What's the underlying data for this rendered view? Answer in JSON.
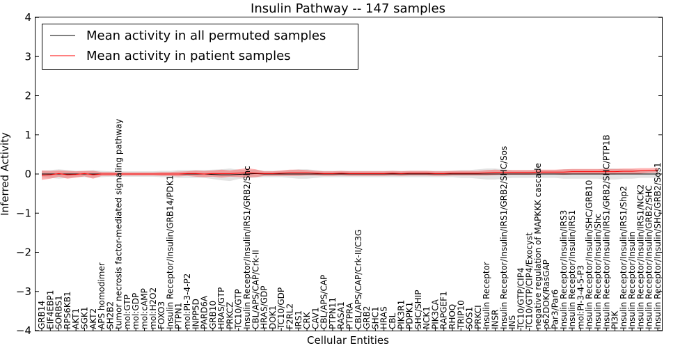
{
  "chart_data": {
    "type": "line",
    "title": "Insulin Pathway -- 147 samples",
    "xlabel": "Cellular Entities",
    "ylabel": "Inferred Activity",
    "ylim": [
      -4,
      4
    ],
    "yticks": [
      "4",
      "3",
      "2",
      "1",
      "0",
      "−1",
      "−2",
      "−3",
      "−4"
    ],
    "legend": {
      "placement": "top-left",
      "entries": [
        {
          "label": "Mean activity in all permuted samples",
          "color": "#000000"
        },
        {
          "label": "Mean activity in patient samples",
          "color": "#ff0000"
        }
      ]
    },
    "categories": [
      "GRB14",
      "EIF4EBP1",
      "SORBS1",
      "RPS6KB1",
      "AKT1",
      "SGK1",
      "AKT2",
      "APS homodimer",
      "SH2B2",
      "tumor necrosis factor-mediated signaling pathway",
      "mol:GTP",
      "mol:GDP",
      "mol:cAMP",
      "mol:H2O2",
      "FOXO3",
      "Insulin Receptor/Insulin/GRB14/PDK1",
      "PTPN1",
      "mol:PI-3-4-P2",
      "INPP5D",
      "PARD6A",
      "GRB10",
      "HRAS/GTP",
      "PRKCZ",
      "TC10/GTP",
      "Insulin Receptor/Insulin/IRS1/GRB2/Shc",
      "CBL/APS/CAP/Crk-II",
      "HRAS/GDP",
      "DOK1",
      "TC10/GDP",
      "F2RL2",
      "IRS1",
      "CRK",
      "CAV1",
      "CBL/APS/CAP",
      "PTPN11",
      "RASA1",
      "PTPRA",
      "CBL/APS/CAP/Crk-II/C3G",
      "GRB2",
      "SHC1",
      "HRAS",
      "CBL",
      "PIK3R1",
      "PDPK1",
      "SHC/SHIP",
      "NCK1",
      "PIK3CA",
      "RAPGEF1",
      "RHOQ",
      "TRIP10",
      "SOS1",
      "PRKCI",
      "Insulin Receptor",
      "INSR",
      "Insulin Receptor/Insulin/IRS1/GRB2/SHC/Sos",
      "INS",
      "TC10/GTP/CIP4",
      "TC10/GTP/CIP4/Exocyst",
      "negative regulation of MAPKKK cascade",
      "p62DOK/RasGAP",
      "Par3/Par6",
      "Insulin Receptor/Insulin/IRS3",
      "Insulin Receptor/Insulin/IRS1",
      "mol:PI-3-4-5-P3",
      "Insulin Receptor/Insulin/SHC/GRB10",
      "Insulin Receptor/Insulin/Shc",
      "Insulin Receptor/Insulin/IRS1/GRB2/SHC/PTP1B",
      "PI3K",
      "Insulin Receptor/Insulin/IRS1/Shp2",
      "Insulin Receptor/Insulin",
      "Insulin Receptor/Insulin/IRS1/NCK2",
      "Insulin Receptor/Insulin/GRB2/SHC",
      "Insulin Receptor/Insulin/SHC/GRB2/Sos1"
    ],
    "series": [
      {
        "name": "Mean activity in all permuted samples",
        "color": "#000000",
        "values": [
          0,
          0,
          0,
          0,
          0,
          0,
          0,
          0,
          0,
          0,
          0,
          0,
          0,
          0,
          0,
          0,
          0,
          0,
          0,
          0,
          -0.01,
          -0.02,
          -0.02,
          -0.01,
          0,
          0.01,
          0,
          0,
          0,
          0,
          0,
          0,
          0,
          0,
          0,
          0,
          0,
          0,
          0,
          0,
          0,
          0,
          0,
          0,
          0,
          0,
          0,
          0,
          0,
          0,
          0,
          0,
          0,
          0,
          0,
          0,
          0,
          0,
          0,
          0,
          0,
          0,
          0,
          0,
          0,
          0,
          0,
          0,
          0,
          0,
          0,
          0,
          0
        ],
        "band": [
          0.08,
          0.1,
          0.12,
          0.1,
          0.08,
          0.08,
          0.1,
          0.08,
          0.07,
          0.07,
          0.07,
          0.07,
          0.07,
          0.07,
          0.08,
          0.08,
          0.1,
          0.1,
          0.1,
          0.1,
          0.12,
          0.14,
          0.16,
          0.12,
          0.1,
          0.1,
          0.08,
          0.08,
          0.08,
          0.1,
          0.12,
          0.12,
          0.1,
          0.08,
          0.08,
          0.08,
          0.08,
          0.08,
          0.08,
          0.08,
          0.08,
          0.08,
          0.08,
          0.08,
          0.08,
          0.08,
          0.08,
          0.08,
          0.08,
          0.1,
          0.1,
          0.12,
          0.14,
          0.14,
          0.12,
          0.1,
          0.1,
          0.1,
          0.1,
          0.1,
          0.1,
          0.12,
          0.12,
          0.12,
          0.12,
          0.12,
          0.14,
          0.14,
          0.12,
          0.12,
          0.1,
          0.1,
          0.1
        ]
      },
      {
        "name": "Mean activity in patient samples",
        "color": "#ff0000",
        "values": [
          -0.03,
          -0.02,
          0.01,
          -0.02,
          -0.01,
          0.01,
          -0.02,
          0,
          0,
          0,
          0,
          0,
          0,
          0,
          0,
          0,
          0,
          0.01,
          0.01,
          0,
          0.01,
          0.01,
          0.01,
          0.02,
          0.03,
          0.02,
          0.01,
          0.01,
          0.02,
          0.03,
          0.03,
          0.03,
          0.02,
          0.01,
          0.01,
          0.02,
          0.01,
          0.01,
          0.01,
          0.01,
          0.01,
          0.02,
          0.01,
          0.02,
          0.02,
          0.02,
          0.01,
          0.01,
          0.02,
          0.02,
          0.02,
          0.02,
          0.03,
          0.04,
          0.04,
          0.04,
          0.04,
          0.04,
          0.05,
          0.05,
          0.05,
          0.05,
          0.06,
          0.06,
          0.06,
          0.06,
          0.06,
          0.06,
          0.07,
          0.07,
          0.08,
          0.09,
          0.1
        ],
        "band": [
          0.12,
          0.1,
          0.08,
          0.1,
          0.08,
          0.07,
          0.1,
          0.05,
          0.05,
          0.04,
          0.04,
          0.04,
          0.04,
          0.04,
          0.05,
          0.05,
          0.06,
          0.06,
          0.08,
          0.08,
          0.08,
          0.1,
          0.08,
          0.1,
          0.12,
          0.1,
          0.06,
          0.06,
          0.07,
          0.08,
          0.08,
          0.07,
          0.06,
          0.06,
          0.06,
          0.06,
          0.06,
          0.06,
          0.06,
          0.06,
          0.06,
          0.06,
          0.06,
          0.06,
          0.06,
          0.06,
          0.06,
          0.06,
          0.06,
          0.06,
          0.06,
          0.06,
          0.07,
          0.07,
          0.06,
          0.06,
          0.06,
          0.06,
          0.06,
          0.06,
          0.06,
          0.07,
          0.07,
          0.07,
          0.07,
          0.07,
          0.07,
          0.07,
          0.07,
          0.07,
          0.07,
          0.06,
          0.06
        ]
      }
    ]
  }
}
